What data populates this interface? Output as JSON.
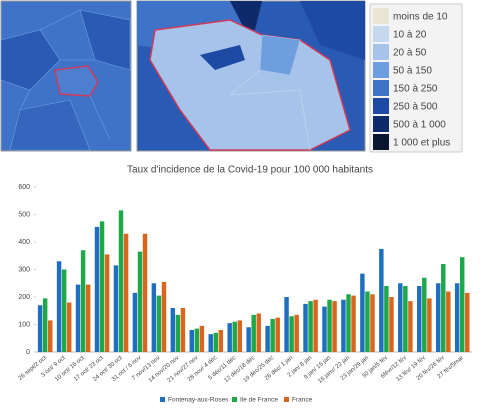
{
  "map_legend": {
    "items": [
      {
        "label": "moins de 10",
        "color": "#e8e4d6"
      },
      {
        "label": "10 à 20",
        "color": "#c6d8ee"
      },
      {
        "label": "20 à 50",
        "color": "#a6c4ea"
      },
      {
        "label": "50 à 150",
        "color": "#6e9ee0"
      },
      {
        "label": "150 à 250",
        "color": "#3f73c8"
      },
      {
        "label": "250 à 500",
        "color": "#1f4aa4"
      },
      {
        "label": "500 à 1 000",
        "color": "#0f2a6a"
      },
      {
        "label": "1 000 et plus",
        "color": "#0a1530"
      }
    ]
  },
  "chart_data": {
    "type": "bar",
    "title": "Taux d'incidence de la Covid-19 pour 100 000 habitants",
    "categories": [
      "26 sept/2 oct",
      "3 oct/ 9 oct",
      "10 oct/ 16 oct",
      "17 oct/ 23 oct",
      "24 oct/ 30 oct",
      "31 oct / 6 nov",
      "7 nov/13 nov",
      "14 nov/20 nov",
      "21 nov/27 nov",
      "28 nov/ 4 déc",
      "5 déc/11 déc",
      "12 déc/18 déc",
      "19 déc/25 déc",
      "26 déc/ 1 jan",
      "2 jan/ 8 jan",
      "9 jan/ 15 jan",
      "16 janv/ 22 jan",
      "23 jan/29 jan",
      "30 jan/5 fév",
      "6févr/12 fév",
      "13 fév/ 19 fév",
      "20 fév/26 fév",
      "27 fév/5mar"
    ],
    "series": [
      {
        "name": "Fontenay-aux-Roses",
        "color": "#1f6fc0",
        "values": [
          170,
          330,
          245,
          455,
          315,
          215,
          250,
          160,
          80,
          65,
          105,
          90,
          95,
          200,
          175,
          165,
          190,
          285,
          375,
          250,
          240,
          250,
          250
        ]
      },
      {
        "name": "Ile de France",
        "color": "#1fa84a",
        "values": [
          195,
          300,
          370,
          475,
          515,
          365,
          205,
          135,
          85,
          70,
          110,
          135,
          120,
          130,
          185,
          190,
          210,
          220,
          240,
          240,
          270,
          320,
          345
        ]
      },
      {
        "name": "France",
        "color": "#d9661e",
        "values": [
          115,
          180,
          245,
          355,
          430,
          430,
          255,
          160,
          95,
          80,
          115,
          140,
          125,
          135,
          190,
          185,
          205,
          210,
          200,
          185,
          195,
          220,
          215
        ]
      }
    ],
    "ylim": [
      0,
      600
    ],
    "yticks": [
      0,
      100,
      200,
      300,
      400,
      500,
      600
    ],
    "grid": false,
    "legend": "bottom"
  }
}
